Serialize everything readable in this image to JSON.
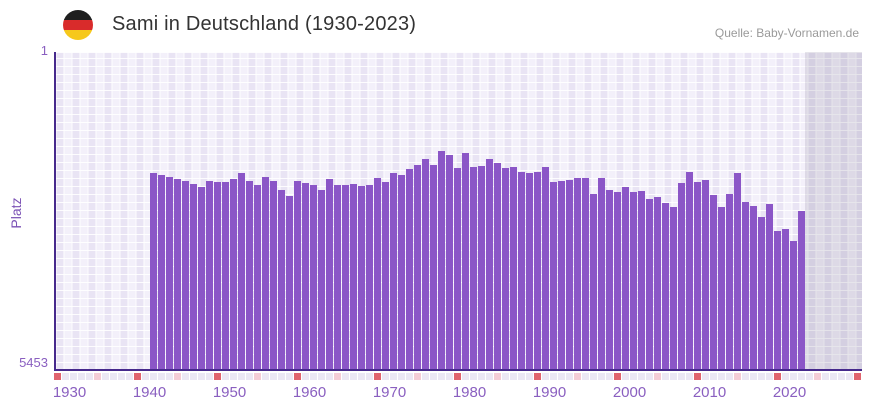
{
  "header": {
    "title": "Sami in Deutschland (1930-2023)",
    "source": "Quelle: Baby-Vornamen.de",
    "flag_icon": "german-flag"
  },
  "chart_data": {
    "type": "bar",
    "title": "Sami in Deutschland (1930-2023)",
    "xlabel": "",
    "ylabel": "Platz",
    "y_axis": {
      "top_tick": "1",
      "bottom_tick": "5453",
      "min": 1,
      "max": 5453,
      "inverted": true,
      "note": "rank 1 at top, rank 5453 at bottom; bars grow up from bottom"
    },
    "x_axis": {
      "range_start": 1929.5,
      "range_end": 2030.5,
      "tick_labels": [
        "1930",
        "1940",
        "1950",
        "1960",
        "1970",
        "1980",
        "1990",
        "2000",
        "2010",
        "2020"
      ],
      "grid": true
    },
    "legend": "none",
    "future_region": {
      "start_year": 2024,
      "end_year": 2030
    },
    "marker_row": {
      "decade_years_color_rule": "year%10==0 red, year%5==0 pink, else lavender",
      "first_year": 1930,
      "last_year": 2030
    },
    "years": [
      1942,
      1943,
      1944,
      1945,
      1946,
      1947,
      1948,
      1949,
      1950,
      1951,
      1952,
      1953,
      1954,
      1955,
      1956,
      1957,
      1958,
      1959,
      1960,
      1961,
      1962,
      1963,
      1964,
      1965,
      1966,
      1967,
      1968,
      1969,
      1970,
      1971,
      1972,
      1973,
      1974,
      1975,
      1976,
      1977,
      1978,
      1979,
      1980,
      1981,
      1982,
      1983,
      1984,
      1985,
      1986,
      1987,
      1988,
      1989,
      1990,
      1991,
      1992,
      1993,
      1994,
      1995,
      1996,
      1997,
      1998,
      1999,
      2000,
      2001,
      2002,
      2003,
      2004,
      2005,
      2006,
      2007,
      2008,
      2009,
      2010,
      2011,
      2012,
      2013,
      2014,
      2015,
      2016,
      2017,
      2018,
      2019,
      2020,
      2021,
      2022,
      2023
    ],
    "values": [
      2075,
      2110,
      2144,
      2183,
      2207,
      2264,
      2310,
      2218,
      2229,
      2229,
      2172,
      2070,
      2207,
      2276,
      2139,
      2207,
      2367,
      2470,
      2207,
      2252,
      2286,
      2367,
      2183,
      2276,
      2276,
      2264,
      2298,
      2276,
      2161,
      2229,
      2080,
      2104,
      2012,
      1938,
      1840,
      1933,
      1703,
      1772,
      1990,
      1738,
      1978,
      1955,
      1840,
      1899,
      1990,
      1972,
      2058,
      2075,
      2058,
      1978,
      2230,
      2207,
      2195,
      2166,
      2166,
      2440,
      2166,
      2367,
      2406,
      2310,
      2396,
      2385,
      2516,
      2481,
      2584,
      2663,
      2241,
      2058,
      2229,
      2195,
      2458,
      2663,
      2435,
      2080,
      2573,
      2641,
      2835,
      2607,
      3075,
      3041,
      3236,
      2732
    ],
    "colors": {
      "bar": "#8b56c7",
      "axis_line": "#46298c",
      "tick_text": "#8a5fc0",
      "axis_title_text": "#7b52b5",
      "marker_decade": "#e0646e",
      "marker_half_decade": "#f4ccd6",
      "marker_default": "#ebe7f4",
      "future_overlay": "rgba(106,102,132,0.16)",
      "flag_black": "#1f1f1f",
      "flag_red": "#d92b2b",
      "flag_gold": "#f6c81c"
    }
  }
}
